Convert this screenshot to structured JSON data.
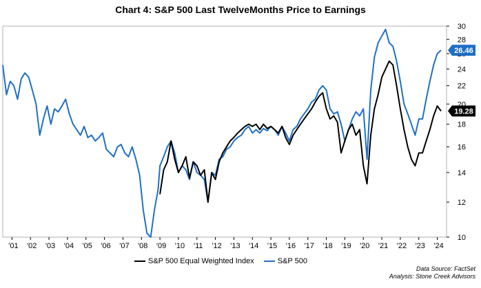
{
  "chart_data": {
    "type": "line",
    "title": "Chart 4:  S&P 500 Last TwelveMonths Price to Earnings",
    "xlabel": "",
    "ylabel": "",
    "y_scale": "log",
    "ylim": [
      10,
      30
    ],
    "xlim": [
      2000.5,
      2024.5
    ],
    "y_ticks": [
      10,
      12,
      14,
      16,
      18,
      20,
      22,
      24,
      26,
      28,
      30
    ],
    "x_tick_labels": [
      "'01",
      "'02",
      "'03",
      "'04",
      "'05",
      "'06",
      "'07",
      "'08",
      "'09",
      "'10",
      "'11",
      "'12",
      "'13",
      "'14",
      "'15",
      "'16",
      "'17",
      "'18",
      "'19",
      "'20",
      "'21",
      "'22",
      "'23",
      "'24"
    ],
    "x_tick_values": [
      2001,
      2002,
      2003,
      2004,
      2005,
      2006,
      2007,
      2008,
      2009,
      2010,
      2011,
      2012,
      2013,
      2014,
      2015,
      2016,
      2017,
      2018,
      2019,
      2020,
      2021,
      2022,
      2023,
      2024
    ],
    "series": [
      {
        "name": "S&P 500 Equal Weighted Index",
        "color": "#000000",
        "end_label": "19.28",
        "x": [
          2009.0,
          2009.2,
          2009.4,
          2009.6,
          2009.8,
          2010.0,
          2010.2,
          2010.4,
          2010.6,
          2010.8,
          2011.0,
          2011.2,
          2011.4,
          2011.6,
          2011.8,
          2012.0,
          2012.2,
          2012.4,
          2012.6,
          2012.8,
          2013.0,
          2013.2,
          2013.4,
          2013.6,
          2013.8,
          2014.0,
          2014.2,
          2014.4,
          2014.6,
          2014.8,
          2015.0,
          2015.2,
          2015.4,
          2015.6,
          2015.8,
          2016.0,
          2016.2,
          2016.4,
          2016.6,
          2016.8,
          2017.0,
          2017.2,
          2017.4,
          2017.6,
          2017.8,
          2018.0,
          2018.2,
          2018.4,
          2018.6,
          2018.8,
          2019.0,
          2019.2,
          2019.4,
          2019.6,
          2019.8,
          2020.0,
          2020.2,
          2020.4,
          2020.6,
          2020.8,
          2021.0,
          2021.2,
          2021.4,
          2021.6,
          2021.8,
          2022.0,
          2022.2,
          2022.4,
          2022.6,
          2022.8,
          2023.0,
          2023.2,
          2023.4,
          2023.6,
          2023.8,
          2024.0,
          2024.2
        ],
        "values": [
          12.5,
          14.2,
          14.8,
          16.5,
          15.0,
          14.0,
          14.5,
          15.2,
          13.6,
          14.8,
          14.5,
          13.8,
          14.2,
          12.0,
          14.0,
          13.5,
          14.8,
          15.5,
          16.0,
          16.5,
          16.8,
          17.2,
          17.5,
          17.8,
          18.0,
          17.8,
          18.0,
          17.5,
          18.0,
          17.6,
          17.8,
          17.5,
          17.2,
          17.8,
          16.8,
          16.2,
          17.0,
          17.5,
          18.0,
          18.5,
          19.0,
          19.5,
          20.2,
          20.8,
          21.2,
          19.5,
          18.5,
          18.8,
          18.2,
          15.5,
          16.5,
          17.5,
          18.0,
          17.0,
          17.5,
          14.5,
          13.2,
          17.0,
          19.5,
          21.0,
          23.0,
          24.0,
          25.0,
          24.5,
          22.0,
          19.5,
          17.5,
          16.0,
          15.0,
          14.5,
          15.5,
          15.5,
          16.5,
          17.5,
          18.8,
          19.8,
          19.28
        ]
      },
      {
        "name": "S&P 500",
        "color": "#1f6fc5",
        "end_label": "26.46",
        "x": [
          2000.5,
          2000.7,
          2000.9,
          2001.1,
          2001.3,
          2001.5,
          2001.7,
          2001.9,
          2002.1,
          2002.3,
          2002.5,
          2002.7,
          2002.9,
          2003.1,
          2003.3,
          2003.5,
          2003.7,
          2003.9,
          2004.1,
          2004.3,
          2004.5,
          2004.7,
          2004.9,
          2005.1,
          2005.3,
          2005.5,
          2005.7,
          2005.9,
          2006.1,
          2006.3,
          2006.5,
          2006.7,
          2006.9,
          2007.1,
          2007.3,
          2007.5,
          2007.7,
          2007.9,
          2008.1,
          2008.3,
          2008.5,
          2008.7,
          2008.9,
          2009.0,
          2009.2,
          2009.4,
          2009.6,
          2009.8,
          2010.0,
          2010.2,
          2010.4,
          2010.6,
          2010.8,
          2011.0,
          2011.2,
          2011.4,
          2011.6,
          2011.8,
          2012.0,
          2012.2,
          2012.4,
          2012.6,
          2012.8,
          2013.0,
          2013.2,
          2013.4,
          2013.6,
          2013.8,
          2014.0,
          2014.2,
          2014.4,
          2014.6,
          2014.8,
          2015.0,
          2015.2,
          2015.4,
          2015.6,
          2015.8,
          2016.0,
          2016.2,
          2016.4,
          2016.6,
          2016.8,
          2017.0,
          2017.2,
          2017.4,
          2017.6,
          2017.8,
          2018.0,
          2018.2,
          2018.4,
          2018.6,
          2018.8,
          2019.0,
          2019.2,
          2019.4,
          2019.6,
          2019.8,
          2020.0,
          2020.2,
          2020.4,
          2020.6,
          2020.8,
          2021.0,
          2021.2,
          2021.4,
          2021.6,
          2021.8,
          2022.0,
          2022.2,
          2022.4,
          2022.6,
          2022.8,
          2023.0,
          2023.2,
          2023.4,
          2023.6,
          2023.8,
          2024.0,
          2024.2
        ],
        "values": [
          24.5,
          21.0,
          22.5,
          22.0,
          20.5,
          22.8,
          23.5,
          23.0,
          21.5,
          20.0,
          17.0,
          18.5,
          19.8,
          18.0,
          19.5,
          19.2,
          19.8,
          20.5,
          19.0,
          18.0,
          17.5,
          17.0,
          17.8,
          16.8,
          17.0,
          16.5,
          16.8,
          17.2,
          15.8,
          15.5,
          15.2,
          16.0,
          16.2,
          15.5,
          15.2,
          16.0,
          15.0,
          13.8,
          11.5,
          10.2,
          10.0,
          11.5,
          12.8,
          14.5,
          15.2,
          16.0,
          16.5,
          15.5,
          14.0,
          14.5,
          14.2,
          13.5,
          14.8,
          14.0,
          13.8,
          13.5,
          12.0,
          14.0,
          13.8,
          15.0,
          15.2,
          15.8,
          16.0,
          16.5,
          16.8,
          17.0,
          17.5,
          17.8,
          17.2,
          17.5,
          17.2,
          17.6,
          17.4,
          17.8,
          17.5,
          17.0,
          17.8,
          17.2,
          16.5,
          17.5,
          17.8,
          18.5,
          19.0,
          19.5,
          20.2,
          20.5,
          21.5,
          22.0,
          21.5,
          19.5,
          19.0,
          19.2,
          18.0,
          16.5,
          17.5,
          18.5,
          19.2,
          18.8,
          19.5,
          15.0,
          21.5,
          25.5,
          27.5,
          28.5,
          29.5,
          27.5,
          27.0,
          25.0,
          22.5,
          20.0,
          19.0,
          18.0,
          17.0,
          18.5,
          18.5,
          20.5,
          22.5,
          24.5,
          26.0,
          26.46
        ]
      }
    ],
    "source_lines": [
      "Data Source: FactSet",
      "Analysis: Stone Creek Advisors"
    ]
  }
}
